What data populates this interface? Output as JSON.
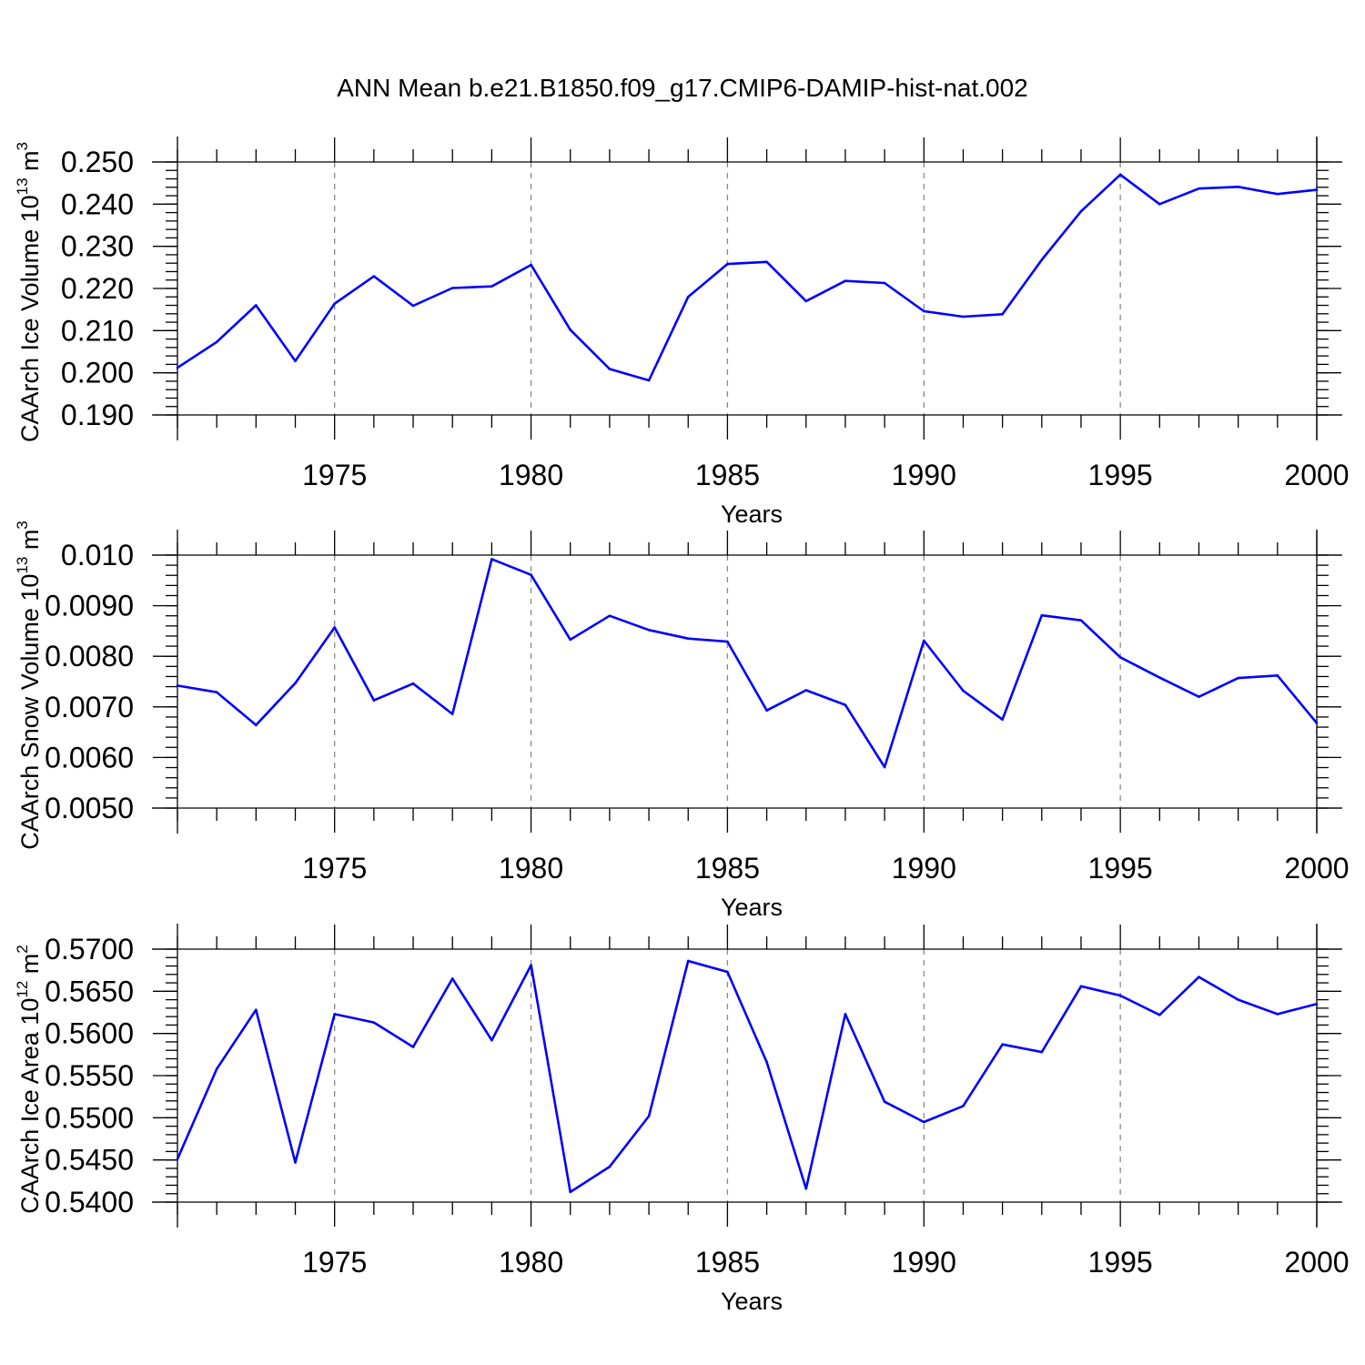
{
  "figure": {
    "title": "ANN Mean b.e21.B1850.f09_g17.CMIP6-DAMIP-hist-nat.002"
  },
  "chart_data": [
    {
      "type": "line",
      "title": "",
      "xlabel": "Years",
      "ylabel_text": "CAArch Ice Volume 10",
      "ylabel_exp": "13",
      "ylabel_unit": " m",
      "ylabel_unit_exp": "3",
      "xlim": [
        1971,
        2000
      ],
      "ylim": [
        0.19,
        0.25
      ],
      "grid": "x-dashed",
      "xticks": [
        1975,
        1980,
        1985,
        1990,
        1995,
        2000
      ],
      "yticks": [
        "0.190",
        "0.200",
        "0.210",
        "0.220",
        "0.230",
        "0.240",
        "0.250"
      ],
      "ytick_values": [
        0.19,
        0.2,
        0.21,
        0.22,
        0.23,
        0.24,
        0.25
      ],
      "ymajor_step": 0.01,
      "yminor_step": 0.002,
      "line_color": "#0000ff",
      "series": [
        {
          "x": [
            1971,
            1972,
            1973,
            1974,
            1975,
            1976,
            1977,
            1978,
            1979,
            1980,
            1981,
            1982,
            1983,
            1984,
            1985,
            1986,
            1987,
            1988,
            1989,
            1990,
            1991,
            1992,
            1993,
            1994,
            1995,
            1996,
            1997,
            1998,
            1999,
            2000
          ],
          "values": [
            0.2012,
            0.2073,
            0.216,
            0.2028,
            0.2164,
            0.2229,
            0.2159,
            0.2201,
            0.2205,
            0.2256,
            0.2102,
            0.2009,
            0.1982,
            0.218,
            0.2258,
            0.2263,
            0.217,
            0.2218,
            0.2213,
            0.2146,
            0.2133,
            0.2139,
            0.2268,
            0.2383,
            0.247,
            0.24,
            0.2437,
            0.2441,
            0.2424,
            0.2434
          ]
        }
      ]
    },
    {
      "type": "line",
      "title": "",
      "xlabel": "Years",
      "ylabel_text": "CAArch Snow Volume 10",
      "ylabel_exp": "13",
      "ylabel_unit": " m",
      "ylabel_unit_exp": "3",
      "xlim": [
        1971,
        2000
      ],
      "ylim": [
        0.005,
        0.01
      ],
      "grid": "x-dashed",
      "xticks": [
        1975,
        1980,
        1985,
        1990,
        1995,
        2000
      ],
      "yticks": [
        "0.0050",
        "0.0060",
        "0.0070",
        "0.0080",
        "0.0090",
        "0.010"
      ],
      "ytick_values": [
        0.005,
        0.006,
        0.007,
        0.008,
        0.009,
        0.01
      ],
      "ymajor_step": 0.001,
      "yminor_step": 0.0002,
      "line_color": "#0000ff",
      "series": [
        {
          "x": [
            1971,
            1972,
            1973,
            1974,
            1975,
            1976,
            1977,
            1978,
            1979,
            1980,
            1981,
            1982,
            1983,
            1984,
            1985,
            1986,
            1987,
            1988,
            1989,
            1990,
            1991,
            1992,
            1993,
            1994,
            1995,
            1996,
            1997,
            1998,
            1999,
            2000
          ],
          "values": [
            0.00742,
            0.00729,
            0.00664,
            0.00747,
            0.00857,
            0.00713,
            0.00746,
            0.00686,
            0.00992,
            0.00961,
            0.00833,
            0.0088,
            0.00852,
            0.00835,
            0.00829,
            0.00693,
            0.00733,
            0.00704,
            0.00581,
            0.00831,
            0.00732,
            0.00675,
            0.00881,
            0.00871,
            0.00798,
            0.00758,
            0.0072,
            0.00757,
            0.00762,
            0.00668
          ]
        }
      ]
    },
    {
      "type": "line",
      "title": "",
      "xlabel": "Years",
      "ylabel_text": "CAArch Ice Area 10",
      "ylabel_exp": "12",
      "ylabel_unit": " m",
      "ylabel_unit_exp": "2",
      "xlim": [
        1971,
        2000
      ],
      "ylim": [
        0.54,
        0.57
      ],
      "grid": "x-dashed",
      "xticks": [
        1975,
        1980,
        1985,
        1990,
        1995,
        2000
      ],
      "yticks": [
        "0.5400",
        "0.5450",
        "0.5500",
        "0.5550",
        "0.5600",
        "0.5650",
        "0.5700"
      ],
      "ytick_values": [
        0.54,
        0.545,
        0.55,
        0.555,
        0.56,
        0.565,
        0.57
      ],
      "ymajor_step": 0.005,
      "yminor_step": 0.001,
      "line_color": "#0000ff",
      "series": [
        {
          "x": [
            1971,
            1972,
            1973,
            1974,
            1975,
            1976,
            1977,
            1978,
            1979,
            1980,
            1981,
            1982,
            1983,
            1984,
            1985,
            1986,
            1987,
            1988,
            1989,
            1990,
            1991,
            1992,
            1993,
            1994,
            1995,
            1996,
            1997,
            1998,
            1999,
            2000
          ],
          "values": [
            0.5451,
            0.5558,
            0.5628,
            0.5447,
            0.5623,
            0.5613,
            0.5584,
            0.5665,
            0.5592,
            0.5681,
            0.5412,
            0.5442,
            0.5502,
            0.5686,
            0.5673,
            0.5566,
            0.5416,
            0.5623,
            0.5519,
            0.5495,
            0.5514,
            0.5587,
            0.5578,
            0.5656,
            0.5645,
            0.5622,
            0.5667,
            0.564,
            0.5623,
            0.5635
          ]
        }
      ]
    }
  ]
}
